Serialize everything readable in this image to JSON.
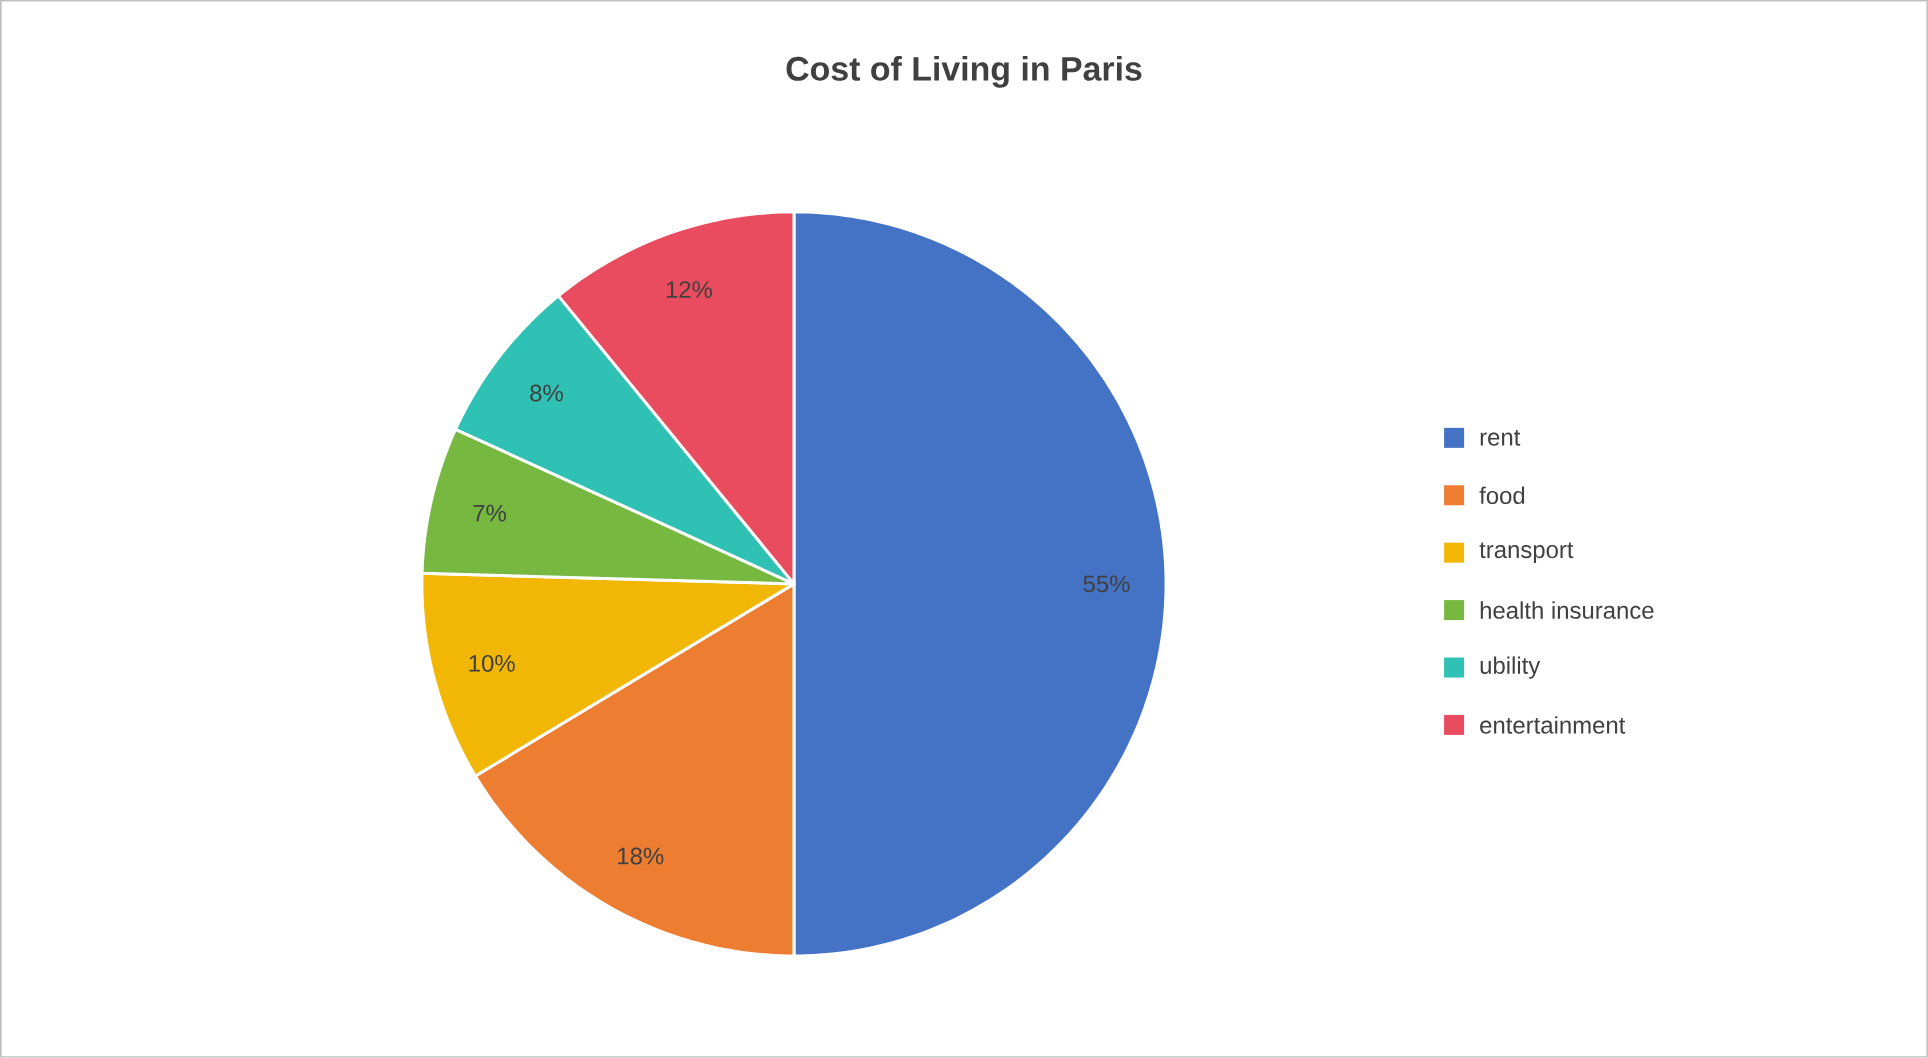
{
  "chart_data": {
    "type": "pie",
    "title": "Cost of Living in Paris",
    "categories": [
      "rent",
      "food",
      "transport",
      "health insurance",
      "ubility",
      "entertainment"
    ],
    "values": [
      55,
      18,
      10,
      7,
      8,
      12
    ],
    "value_labels": [
      "55%",
      "18%",
      "10%",
      "7%",
      "8%",
      "12%"
    ],
    "colors": [
      "#4472c4",
      "#ed7d31",
      "#f2b705",
      "#76b840",
      "#2fc1b4",
      "#e84c5e"
    ],
    "legend": "right"
  }
}
